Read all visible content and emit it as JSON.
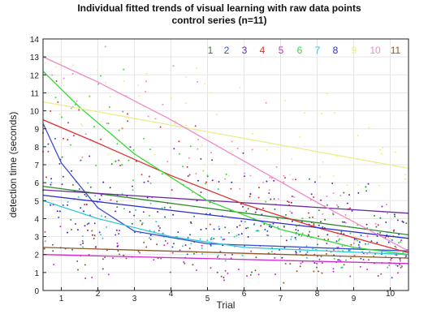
{
  "chart_data": {
    "type": "scatter",
    "title": "Individual fitted trends of visual learning with raw data points",
    "subtitle": "control series (n=11)",
    "xlabel": "Trial",
    "ylabel": "detection time (seconds)",
    "xlim": [
      0.5,
      10.5
    ],
    "ylim": [
      0,
      14
    ],
    "xticks": [
      1,
      2,
      3,
      4,
      5,
      6,
      7,
      8,
      9,
      10
    ],
    "yticks": [
      0,
      1,
      2,
      3,
      4,
      5,
      6,
      7,
      8,
      9,
      10,
      11,
      12,
      13,
      14
    ],
    "grid": true,
    "legend_position": "top-right",
    "series": [
      {
        "name": "1",
        "color": "#2e8b2e",
        "fit": [
          [
            0.5,
            5.8
          ],
          [
            10.5,
            3.1
          ]
        ]
      },
      {
        "name": "2",
        "color": "#3a4fcf",
        "fit": [
          [
            0.5,
            9.3
          ],
          [
            1.0,
            7.1
          ],
          [
            2.0,
            4.6
          ],
          [
            3.0,
            3.3
          ],
          [
            5.0,
            2.6
          ],
          [
            10.5,
            2.2
          ]
        ]
      },
      {
        "name": "3",
        "color": "#6a2ca0",
        "fit": [
          [
            0.5,
            5.6
          ],
          [
            10.5,
            4.3
          ]
        ]
      },
      {
        "name": "4",
        "color": "#e03030",
        "fit": [
          [
            0.5,
            9.5
          ],
          [
            2.0,
            8.2
          ],
          [
            4.0,
            6.4
          ],
          [
            6.0,
            4.8
          ],
          [
            8.0,
            3.5
          ],
          [
            10.5,
            2.1
          ]
        ]
      },
      {
        "name": "5",
        "color": "#d02bd0",
        "fit": [
          [
            0.5,
            2.0
          ],
          [
            10.5,
            1.5
          ]
        ]
      },
      {
        "name": "6",
        "color": "#38d838",
        "fit": [
          [
            0.5,
            12.2
          ],
          [
            1.5,
            10.2
          ],
          [
            3.0,
            7.6
          ],
          [
            5.0,
            5.0
          ],
          [
            7.0,
            3.4
          ],
          [
            9.0,
            2.4
          ],
          [
            10.5,
            2.0
          ]
        ]
      },
      {
        "name": "7",
        "color": "#2ec8d8",
        "fit": [
          [
            0.5,
            5.0
          ],
          [
            2.0,
            4.0
          ],
          [
            4.0,
            3.0
          ],
          [
            6.0,
            2.4
          ],
          [
            10.5,
            2.0
          ]
        ]
      },
      {
        "name": "8",
        "color": "#2b2bcf",
        "fit": [
          [
            0.5,
            5.3
          ],
          [
            10.5,
            2.9
          ]
        ]
      },
      {
        "name": "9",
        "color": "#ecec8c",
        "fit": [
          [
            0.5,
            10.5
          ],
          [
            10.5,
            6.8
          ]
        ]
      },
      {
        "name": "10",
        "color": "#f08ac8",
        "fit": [
          [
            0.5,
            13.0
          ],
          [
            2.0,
            11.6
          ],
          [
            4.0,
            9.5
          ],
          [
            6.0,
            7.2
          ],
          [
            8.0,
            4.9
          ],
          [
            10.5,
            2.2
          ]
        ]
      },
      {
        "name": "11",
        "color": "#8b5a2b",
        "fit": [
          [
            0.5,
            2.4
          ],
          [
            10.5,
            1.8
          ]
        ]
      }
    ]
  }
}
